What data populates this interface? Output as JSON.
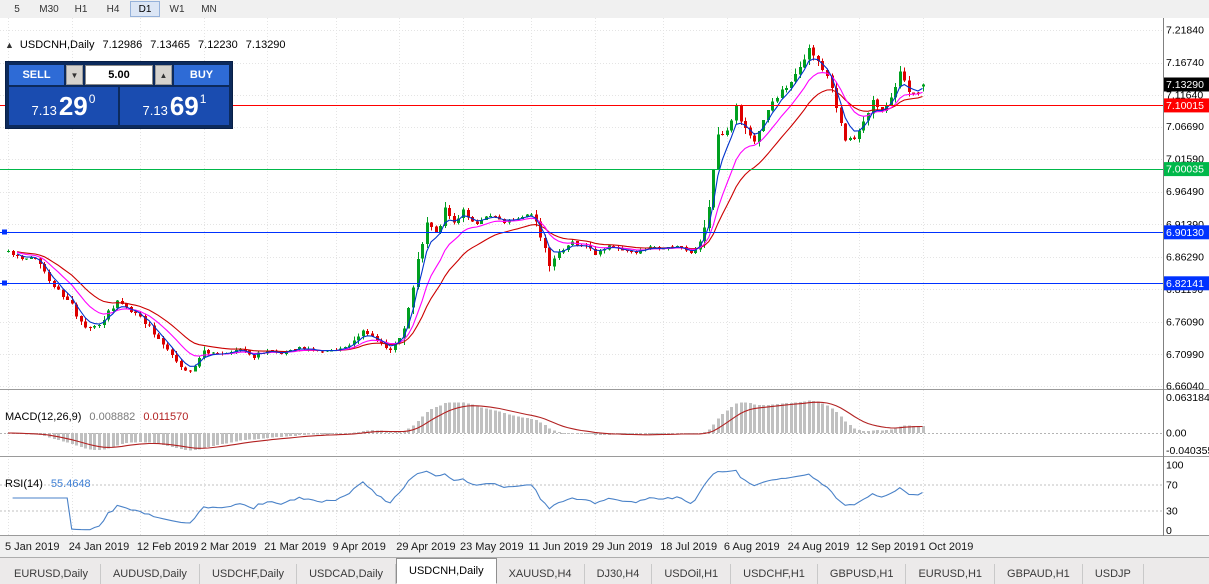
{
  "toolbar": {
    "periods": [
      {
        "label": "5"
      },
      {
        "label": "M30"
      },
      {
        "label": "H1"
      },
      {
        "label": "H4"
      },
      {
        "label": "D1",
        "active": true
      },
      {
        "label": "W1"
      },
      {
        "label": "MN"
      }
    ]
  },
  "chart": {
    "title": "USDCNH,Daily",
    "collapse_icon": "▲",
    "ohlc": {
      "open": "7.12986",
      "high": "7.13465",
      "low": "7.12230",
      "close": "7.13290"
    }
  },
  "trade_panel": {
    "sell_label": "SELL",
    "buy_label": "BUY",
    "volume": "5.00",
    "volume_down_icon": "▼",
    "volume_up_icon": "▲",
    "sell_price": {
      "prefix": "7.13",
      "big": "29",
      "sup": "0"
    },
    "buy_price": {
      "prefix": "7.13",
      "big": "69",
      "sup": "1"
    }
  },
  "macd": {
    "label": "MACD(12,26,9)",
    "value_main": "0.008882",
    "value_signal": "0.011570",
    "axis": [
      "0.063184",
      "0.00",
      "-0.040355"
    ]
  },
  "rsi": {
    "label": "RSI(14)",
    "value": "55.4648",
    "axis": [
      "100",
      "70",
      "30",
      "0"
    ]
  },
  "tabs": [
    {
      "label": "EURUSD,Daily"
    },
    {
      "label": "AUDUSD,Daily"
    },
    {
      "label": "USDCHF,Daily"
    },
    {
      "label": "USDCAD,Daily"
    },
    {
      "label": "USDCNH,Daily",
      "active": true
    },
    {
      "label": "XAUUSD,H4"
    },
    {
      "label": "DJ30,H4"
    },
    {
      "label": "USDOil,H1"
    },
    {
      "label": "USDCHF,H1"
    },
    {
      "label": "GBPUSD,H1"
    },
    {
      "label": "EURUSD,H1"
    },
    {
      "label": "GBPAUD,H1"
    },
    {
      "label": "USDJP"
    }
  ],
  "chart_data": {
    "type": "candlestick",
    "symbol": "USDCNH",
    "timeframe": "Daily",
    "visible_range": {
      "price_min": 6.6604,
      "price_max": 7.2184
    },
    "axis_prices": [
      "7.21840",
      "7.16740",
      "7.11640",
      "7.06690",
      "7.01590",
      "6.96490",
      "6.91390",
      "6.86290",
      "6.81190",
      "6.76090",
      "6.70990",
      "6.66040"
    ],
    "current_price": {
      "value": 7.1329,
      "label": "7.13290"
    },
    "last_candle": {
      "open": 7.12986,
      "high": 7.13465,
      "low": 7.1223,
      "close": 7.1329
    },
    "hlines": [
      {
        "value": 7.10015,
        "label": "7.10015",
        "color": "#ff0000",
        "handles": false
      },
      {
        "value": 7.00035,
        "label": "7.00035",
        "color": "#00b84a",
        "handles": false
      },
      {
        "value": 6.9013,
        "label": "6.90130",
        "color": "#0032ff",
        "handles": true
      },
      {
        "value": 6.82141,
        "label": "6.82141",
        "color": "#0032ff",
        "handles": true
      }
    ],
    "dates": [
      "5 Jan 2019",
      "24 Jan 2019",
      "12 Feb 2019",
      "2 Mar 2019",
      "21 Mar 2019",
      "9 Apr 2019",
      "29 Apr 2019",
      "23 May 2019",
      "11 Jun 2019",
      "29 Jun 2019",
      "18 Jul 2019",
      "6 Aug 2019",
      "24 Aug 2019",
      "12 Sep 2019",
      "1 Oct 2019"
    ],
    "date_candle_idx": [
      0,
      14,
      29,
      43,
      57,
      72,
      86,
      100,
      115,
      129,
      144,
      158,
      172,
      187,
      201
    ],
    "candle_count": 202,
    "waypoints": [
      [
        0,
        6.872
      ],
      [
        3,
        6.858
      ],
      [
        6,
        6.862
      ],
      [
        10,
        6.818
      ],
      [
        14,
        6.786
      ],
      [
        17,
        6.748
      ],
      [
        20,
        6.757
      ],
      [
        24,
        6.792
      ],
      [
        27,
        6.778
      ],
      [
        29,
        6.77
      ],
      [
        32,
        6.744
      ],
      [
        35,
        6.72
      ],
      [
        38,
        6.69
      ],
      [
        40,
        6.683
      ],
      [
        43,
        6.714
      ],
      [
        47,
        6.709
      ],
      [
        51,
        6.718
      ],
      [
        54,
        6.707
      ],
      [
        57,
        6.717
      ],
      [
        60,
        6.711
      ],
      [
        64,
        6.722
      ],
      [
        68,
        6.715
      ],
      [
        72,
        6.717
      ],
      [
        75,
        6.723
      ],
      [
        78,
        6.748
      ],
      [
        81,
        6.732
      ],
      [
        84,
        6.717
      ],
      [
        86,
        6.734
      ],
      [
        88,
        6.778
      ],
      [
        90,
        6.858
      ],
      [
        92,
        6.92
      ],
      [
        94,
        6.9
      ],
      [
        96,
        6.934
      ],
      [
        98,
        6.918
      ],
      [
        100,
        6.934
      ],
      [
        103,
        6.913
      ],
      [
        106,
        6.928
      ],
      [
        109,
        6.918
      ],
      [
        112,
        6.924
      ],
      [
        115,
        6.929
      ],
      [
        117,
        6.898
      ],
      [
        119,
        6.855
      ],
      [
        121,
        6.871
      ],
      [
        124,
        6.886
      ],
      [
        127,
        6.878
      ],
      [
        129,
        6.868
      ],
      [
        132,
        6.88
      ],
      [
        135,
        6.873
      ],
      [
        138,
        6.868
      ],
      [
        141,
        6.877
      ],
      [
        144,
        6.875
      ],
      [
        147,
        6.88
      ],
      [
        150,
        6.868
      ],
      [
        152,
        6.884
      ],
      [
        154,
        6.938
      ],
      [
        156,
        7.048
      ],
      [
        158,
        7.058
      ],
      [
        160,
        7.094
      ],
      [
        162,
        7.06
      ],
      [
        164,
        7.044
      ],
      [
        166,
        7.079
      ],
      [
        168,
        7.104
      ],
      [
        170,
        7.124
      ],
      [
        172,
        7.134
      ],
      [
        174,
        7.162
      ],
      [
        176,
        7.19
      ],
      [
        178,
        7.166
      ],
      [
        180,
        7.148
      ],
      [
        182,
        7.096
      ],
      [
        184,
        7.052
      ],
      [
        186,
        7.048
      ],
      [
        188,
        7.078
      ],
      [
        190,
        7.108
      ],
      [
        192,
        7.092
      ],
      [
        194,
        7.118
      ],
      [
        196,
        7.148
      ],
      [
        198,
        7.126
      ],
      [
        200,
        7.118
      ],
      [
        201,
        7.133
      ]
    ],
    "ma_periods": {
      "fast": 4,
      "mid": 10,
      "slow": 18
    },
    "colors": {
      "up": "#00a020",
      "down": "#dd0000",
      "ma_fast": "#0033cc",
      "ma_mid": "#ff00ff",
      "ma_slow": "#cc0000",
      "grid": "#e4e4e4",
      "macd_hist": "#c0c0c0",
      "macd_signal": "#b22222",
      "rsi": "#4a82c8",
      "rsi_levels": "#c0c0c0",
      "current_badge": "#000000"
    }
  }
}
